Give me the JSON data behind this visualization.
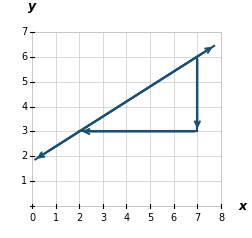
{
  "xlim": [
    -0.5,
    8.5
  ],
  "ylim": [
    -0.5,
    7.5
  ],
  "plot_xlim": [
    0,
    8
  ],
  "plot_ylim": [
    0,
    7
  ],
  "xticks": [
    0,
    1,
    2,
    3,
    4,
    5,
    6,
    7,
    8
  ],
  "yticks": [
    0,
    1,
    2,
    3,
    4,
    5,
    6,
    7
  ],
  "line_x_start": 0.1,
  "line_x_end": 7.75,
  "slope": 0.6,
  "intercept": 1.8,
  "color": "#1a4f6e",
  "lw": 1.5,
  "pt1": [
    2,
    3
  ],
  "pt2": [
    7,
    6
  ],
  "pt3": [
    7,
    3
  ],
  "tick_fontsize": 7,
  "xlabel": "x",
  "ylabel": "y",
  "bg": "#ffffff",
  "grid_color": "#c8c8c8",
  "axis_color": "#000000",
  "mutation_scale": 9,
  "box_color": "#c8c8c8"
}
